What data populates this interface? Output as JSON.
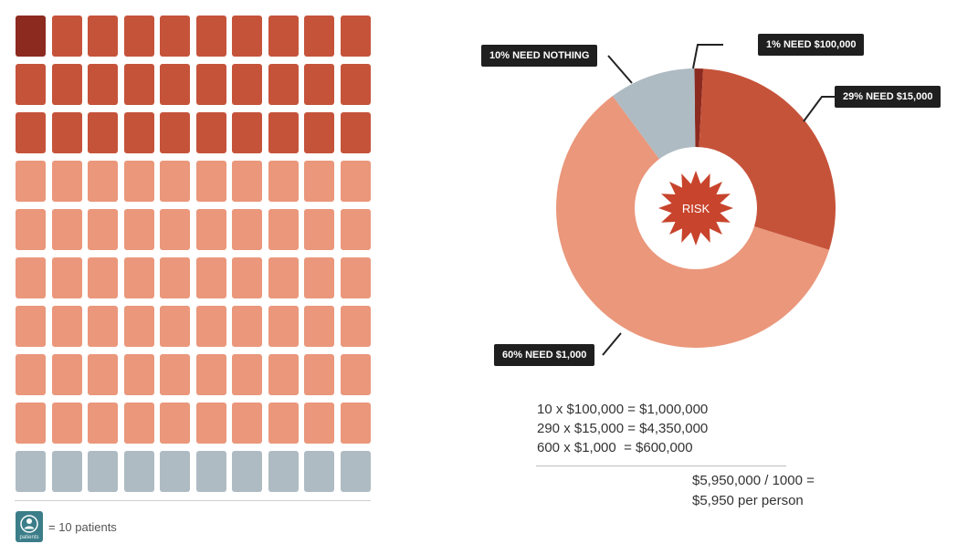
{
  "chart_data": [
    {
      "type": "waffle",
      "grid": {
        "rows": 10,
        "cols": 10
      },
      "unit_label": "= 10 patients",
      "icon_caption": "patients",
      "segments": [
        {
          "key": "100k",
          "count": 1,
          "color": "#8c2a20"
        },
        {
          "key": "15k",
          "count": 29,
          "color": "#c5533a"
        },
        {
          "key": "1k",
          "count": 60,
          "color": "#ea977b"
        },
        {
          "key": "nothing",
          "count": 10,
          "color": "#aebbc3"
        }
      ]
    },
    {
      "type": "pie",
      "center_label": "RISK",
      "slices": [
        {
          "label": "1% NEED $100,000",
          "value": 1,
          "color": "#8c2a20"
        },
        {
          "label": "29% NEED $15,000",
          "value": 29,
          "color": "#c5533a"
        },
        {
          "label": "60% NEED $1,000",
          "value": 60,
          "color": "#ea977b"
        },
        {
          "label": "10% NEED NOTHING",
          "value": 10,
          "color": "#aebbc3"
        }
      ]
    }
  ],
  "calculation": {
    "lines": [
      "10 x $100,000 = $1,000,000",
      "290 x $15,000 = $4,350,000",
      "600 x $1,000  = $600,000"
    ],
    "total_line1": "$5,950,000 / 1000 =",
    "total_line2": "$5,950 per person"
  }
}
